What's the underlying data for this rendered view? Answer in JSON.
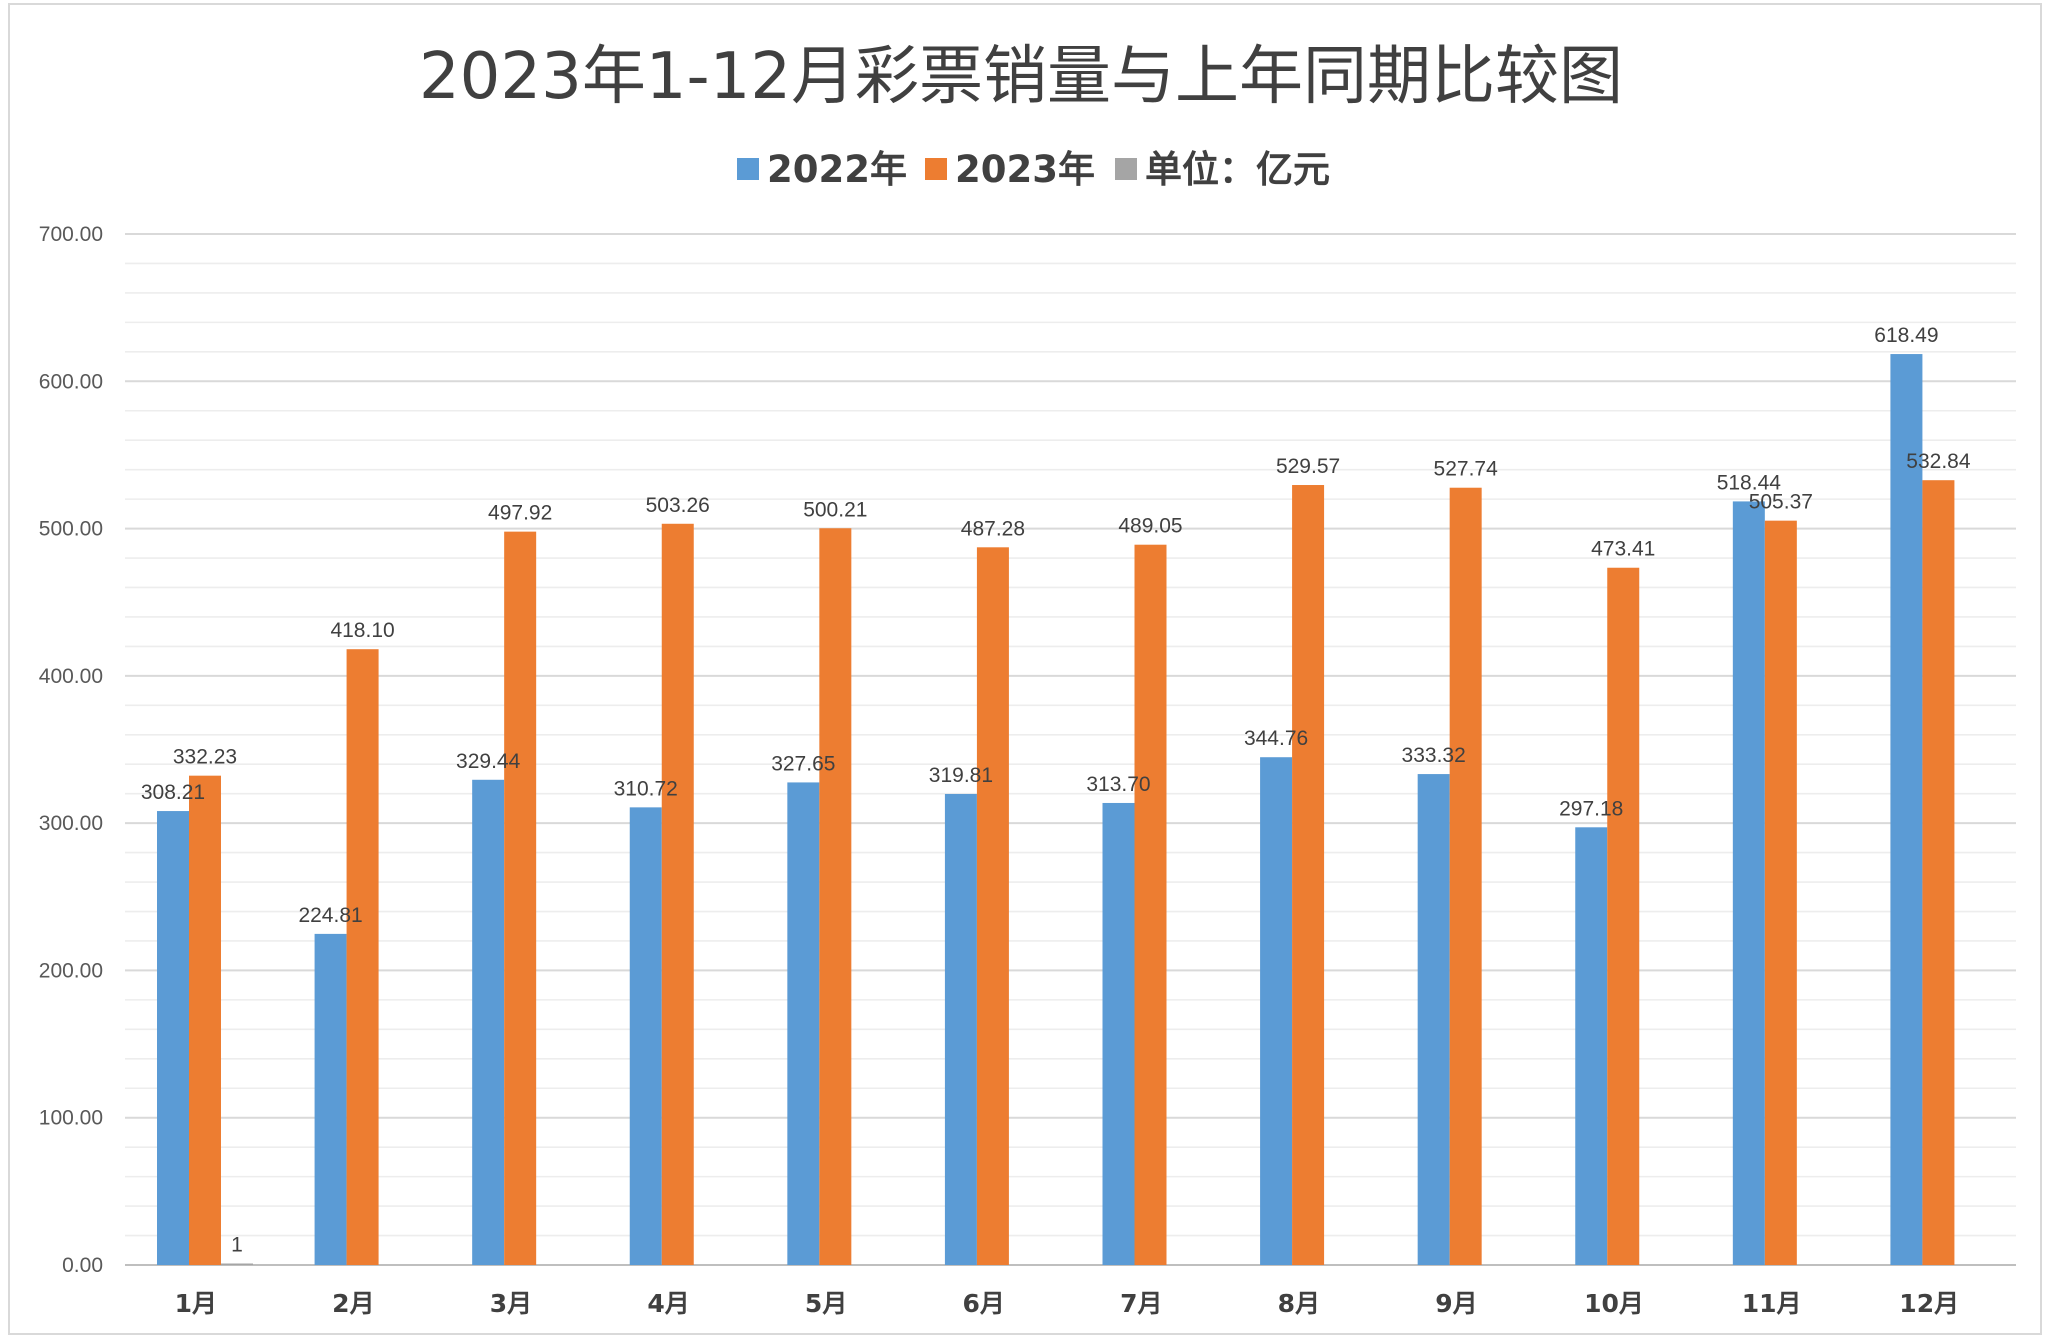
{
  "chart_data": {
    "type": "bar",
    "title": "2023年1-12月彩票销量与上年同期比较图",
    "xlabel": "",
    "ylabel": "",
    "categories": [
      "1月",
      "2月",
      "3月",
      "4月",
      "5月",
      "6月",
      "7月",
      "8月",
      "9月",
      "10月",
      "11月",
      "12月"
    ],
    "series": [
      {
        "name": "2022年",
        "color": "#5b9bd5",
        "values": [
          308.21,
          224.81,
          329.44,
          310.72,
          327.65,
          319.81,
          313.7,
          344.76,
          333.32,
          297.18,
          518.44,
          618.49
        ],
        "labels": [
          "308.21",
          "224.81",
          "329.44",
          "310.72",
          "327.65",
          "319.81",
          "313.70",
          "344.76",
          "333.32",
          "297.18",
          "518.44",
          "618.49"
        ]
      },
      {
        "name": "2023年",
        "color": "#ed7d31",
        "values": [
          332.23,
          418.1,
          497.92,
          503.26,
          500.21,
          487.28,
          489.05,
          529.57,
          527.74,
          473.41,
          505.37,
          532.84
        ],
        "labels": [
          "332.23",
          "418.10",
          "497.92",
          "503.26",
          "500.21",
          "487.28",
          "489.05",
          "529.57",
          "527.74",
          "473.41",
          "505.37",
          "532.84"
        ]
      },
      {
        "name": "单位：亿元",
        "color": "#a5a5a5",
        "values": [
          1,
          null,
          null,
          null,
          null,
          null,
          null,
          null,
          null,
          null,
          null,
          null
        ],
        "labels": [
          "1",
          "",
          "",
          "",
          "",
          "",
          "",
          "",
          "",
          "",
          "",
          ""
        ]
      }
    ],
    "ylim": [
      0,
      700
    ],
    "yticks": [
      "0.00",
      "100.00",
      "200.00",
      "300.00",
      "400.00",
      "500.00",
      "600.00",
      "700.00"
    ],
    "grid": true,
    "legend_position": "top"
  }
}
